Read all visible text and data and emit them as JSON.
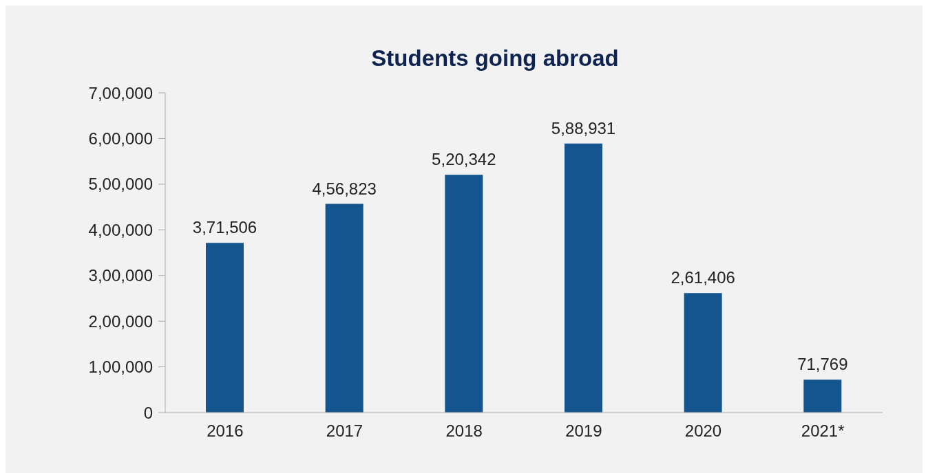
{
  "chart_data": {
    "type": "bar",
    "title": "Students going abroad",
    "categories": [
      "2016",
      "2017",
      "2018",
      "2019",
      "2020",
      "2021*"
    ],
    "values": [
      371506,
      456823,
      520342,
      588931,
      261406,
      71769
    ],
    "value_labels": [
      "3,71,506",
      "4,56,823",
      "5,20,342",
      "5,88,931",
      "2,61,406",
      "71,769"
    ],
    "color": "#14548f",
    "ylim": [
      0,
      700000
    ],
    "yticks": [
      0,
      {
        "value": 100000,
        "label": "1,00,000"
      },
      {
        "value": 200000,
        "label": "2,00,000"
      },
      {
        "value": 300000,
        "label": "3,00,000"
      },
      {
        "value": 400000,
        "label": "4,00,000"
      },
      {
        "value": 500000,
        "label": "5,00,000"
      },
      {
        "value": 600000,
        "label": "6,00,000"
      },
      {
        "value": 700000,
        "label": "7,00,000"
      }
    ],
    "grid": false,
    "legend": false
  }
}
